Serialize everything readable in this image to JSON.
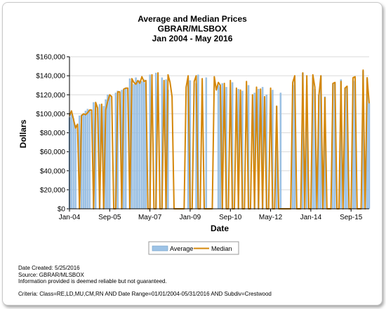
{
  "chart_data": {
    "type": "bar",
    "title": "Average and Median Prices",
    "subtitle_lines": [
      "GBRAR/MLSBOX",
      "Jan 2004 - May 2016"
    ],
    "xlabel": "Date",
    "ylabel": "Dollars",
    "ylim": [
      0,
      160000
    ],
    "yticks": [
      "$0",
      "$20,000",
      "$40,000",
      "$60,000",
      "$80,000",
      "$100,000",
      "$120,000",
      "$140,000",
      "$160,000"
    ],
    "xticks": [
      {
        "label": "Jan-04",
        "index": 0
      },
      {
        "label": "Sep-05",
        "index": 20
      },
      {
        "label": "May-07",
        "index": 40
      },
      {
        "label": "Jan-09",
        "index": 60
      },
      {
        "label": "Sep-10",
        "index": 80
      },
      {
        "label": "May-12",
        "index": 100
      },
      {
        "label": "Jan-14",
        "index": 120
      },
      {
        "label": "Sep-15",
        "index": 140
      }
    ],
    "x_start": "2004-01",
    "x_end": "2016-05",
    "grid": true,
    "legend_position": "bottom",
    "series": [
      {
        "name": "Average",
        "kind": "bar",
        "color": "#9dc3e6",
        "values": [
          96000,
          103000,
          95000,
          88000,
          0,
          98000,
          99000,
          100000,
          103000,
          105000,
          104000,
          0,
          112000,
          108000,
          0,
          110000,
          0,
          108000,
          115000,
          120000,
          118000,
          0,
          0,
          122000,
          124000,
          0,
          125000,
          126000,
          127000,
          0,
          137000,
          134000,
          131000,
          138000,
          133000,
          135000,
          134000,
          136000,
          132000,
          0,
          141000,
          0,
          0,
          143000,
          0,
          0,
          138000,
          0,
          136000,
          125000,
          0,
          0,
          0,
          0,
          0,
          0,
          0,
          0,
          0,
          138000,
          135000,
          0,
          0,
          132000,
          141000,
          0,
          0,
          0,
          138000,
          0,
          0,
          0,
          0,
          0,
          130000,
          128000,
          132000,
          0,
          128000,
          0,
          0,
          133000,
          0,
          0,
          126000,
          0,
          124000,
          0,
          0,
          130000,
          0,
          0,
          122000,
          0,
          126000,
          0,
          128000,
          0,
          120000,
          0,
          0,
          125000,
          0,
          108000,
          0,
          122000,
          0,
          0,
          0,
          0,
          0,
          130000,
          134000,
          0,
          0,
          0,
          143000,
          0,
          130000,
          0,
          0,
          138000,
          126000,
          0,
          120000,
          140000,
          0,
          118000,
          0,
          0,
          0,
          132000,
          133000,
          0,
          0,
          136000,
          0,
          127000,
          129000,
          0,
          0,
          135000,
          134000,
          0,
          0,
          0,
          145000,
          0,
          137000,
          111000
        ]
      },
      {
        "name": "Median",
        "kind": "line",
        "color": "#d4870a",
        "values": [
          98000,
          103000,
          94000,
          85000,
          89000,
          0,
          98000,
          100000,
          99000,
          101000,
          104000,
          104000,
          0,
          112000,
          106000,
          0,
          110000,
          0,
          104000,
          113000,
          120000,
          118000,
          0,
          0,
          123000,
          123000,
          0,
          126000,
          127000,
          127000,
          0,
          137000,
          133000,
          131000,
          135000,
          132000,
          139000,
          134000,
          135000,
          0,
          0,
          141000,
          0,
          0,
          143000,
          0,
          0,
          135000,
          0,
          141000,
          133000,
          118000,
          0,
          0,
          0,
          0,
          0,
          0,
          128000,
          140000,
          0,
          0,
          134000,
          140000,
          0,
          0,
          137000,
          0,
          0,
          0,
          0,
          0,
          139000,
          125000,
          133000,
          130000,
          0,
          132000,
          0,
          0,
          135000,
          0,
          0,
          127000,
          0,
          125000,
          0,
          0,
          134000,
          0,
          0,
          120000,
          0,
          128000,
          0,
          126000,
          0,
          118000,
          0,
          0,
          127000,
          0,
          0,
          108000,
          0,
          0,
          0,
          0,
          0,
          0,
          0,
          133000,
          140000,
          0,
          0,
          0,
          143000,
          0,
          140000,
          0,
          0,
          141000,
          128000,
          0,
          119000,
          140000,
          0,
          117000,
          0,
          0,
          0,
          132000,
          133000,
          0,
          0,
          134000,
          0,
          127000,
          129000,
          0,
          0,
          138000,
          139000,
          0,
          0,
          0,
          146000,
          0,
          138000,
          111000
        ]
      }
    ]
  },
  "legend": {
    "average_label": "Average",
    "median_label": "Median"
  },
  "footer": {
    "date_created": "Date Created: 5/25/2016",
    "source": "Source: GBRAR/MLSBOX",
    "disclaimer": "Information provided is deemed reliable but not guaranteed.",
    "criteria": "Criteria: Class=RE,LD,MU,CM,RN AND Date Range=01/01/2004-05/31/2016 AND Subdiv=Crestwood"
  }
}
